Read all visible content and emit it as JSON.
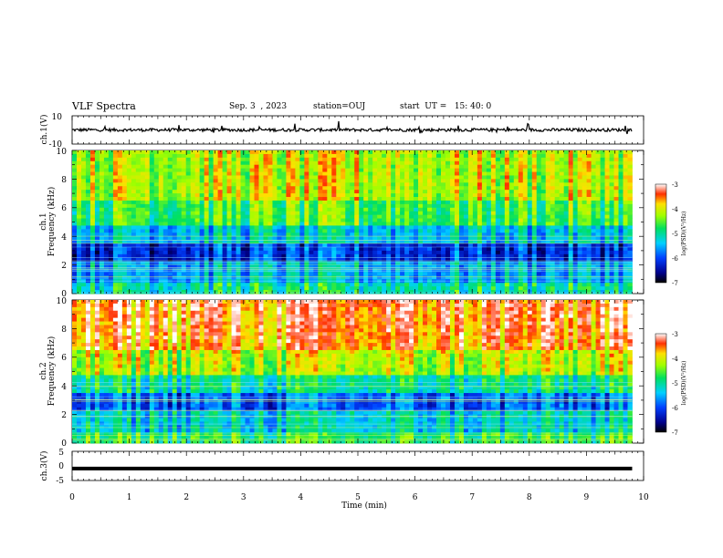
{
  "header": {
    "title": "VLF Spectra",
    "date": "Sep. 3  , 2023",
    "station": "station=OUJ",
    "start": "start  UT =   15: 40: 0"
  },
  "chart_data": [
    {
      "type": "line",
      "panel": "ch1-waveform",
      "ylabel": "ch.1(V)",
      "ylim": [
        -10,
        10
      ],
      "ytick_labels": [
        "10",
        "-10"
      ],
      "trace_level": 0,
      "xlim": [
        0,
        10
      ]
    },
    {
      "type": "heatmap",
      "panel": "ch1-spectrogram",
      "ylabel": "ch.1\nFrequency (kHz)",
      "ylim": [
        0,
        10
      ],
      "ytick_labels": [
        "0",
        "2",
        "4",
        "6",
        "8",
        "10"
      ],
      "xlim": [
        0,
        9.8
      ],
      "colorbar": {
        "label": "log(PSD)(V²/Hz)",
        "range": [
          -7,
          -3
        ],
        "tick_labels": [
          "-3",
          "-4",
          "-5",
          "-6",
          "-7"
        ]
      }
    },
    {
      "type": "heatmap",
      "panel": "ch2-spectrogram",
      "ylabel": "ch.2\nFrequency (kHz)",
      "ylim": [
        0,
        10
      ],
      "ytick_labels": [
        "0",
        "2",
        "4",
        "6",
        "8",
        "10"
      ],
      "xlim": [
        0,
        9.8
      ],
      "colorbar": {
        "label": "log(PSD)(V²/Hz)",
        "range": [
          -7,
          -3
        ],
        "tick_labels": [
          "-3",
          "-4",
          "-5",
          "-6",
          "-7"
        ]
      }
    },
    {
      "type": "line",
      "panel": "ch3-waveform",
      "ylabel": "ch.3(V)",
      "ylim": [
        -5,
        5
      ],
      "ytick_labels": [
        "5",
        "0",
        "-5"
      ],
      "trace_level": -0.9,
      "xlim": [
        0,
        10
      ]
    }
  ],
  "x_axis": {
    "label": "Time (min)",
    "range": [
      0,
      10
    ],
    "tick_labels": [
      "0",
      "1",
      "2",
      "3",
      "4",
      "5",
      "6",
      "7",
      "8",
      "9",
      "10"
    ]
  }
}
